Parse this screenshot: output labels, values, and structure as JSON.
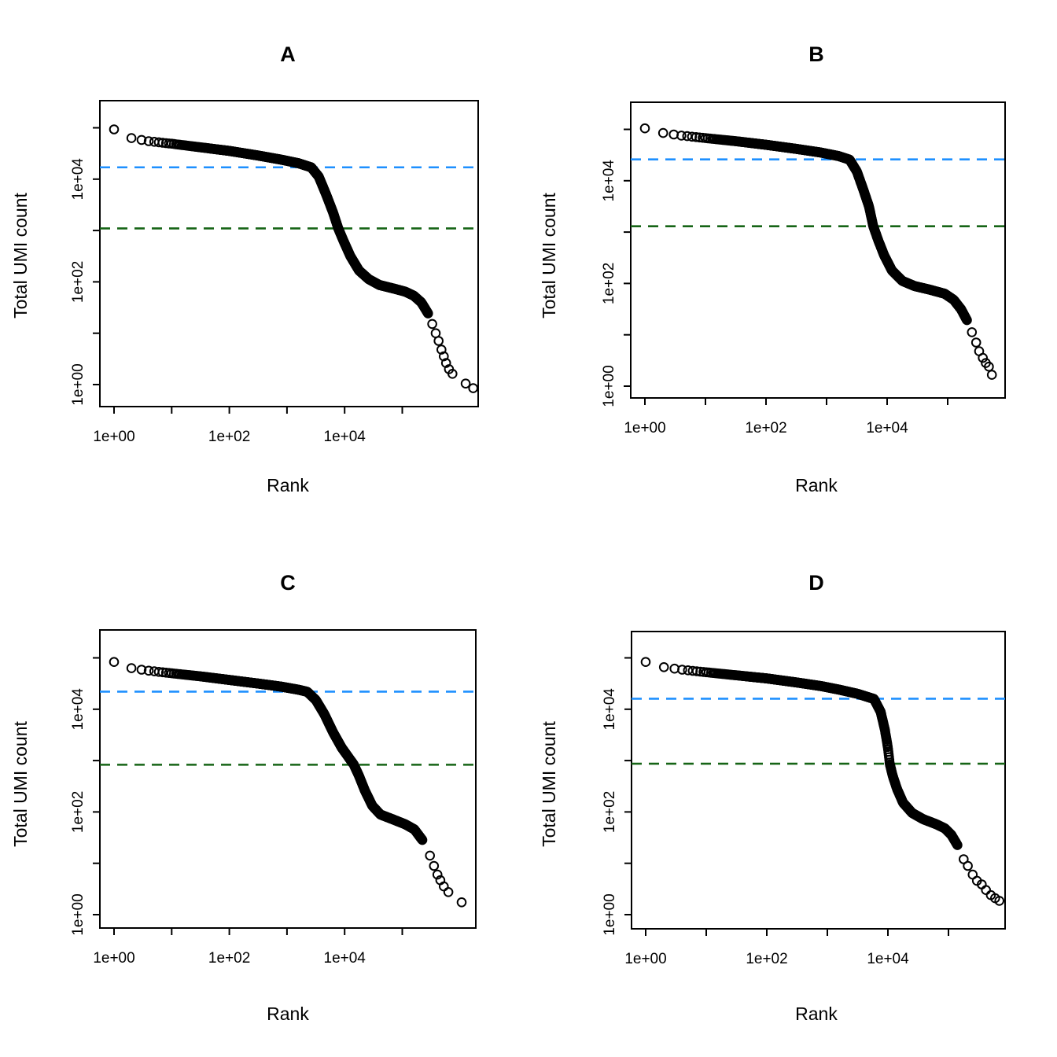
{
  "figure": {
    "background": "#ffffff",
    "description": "2x2 grid of barcode-rank (knee) scatter plots on log-log axes with knee and inflection threshold lines"
  },
  "colors": {
    "knee_line": "#1E90FF",
    "inflection_line": "#166416",
    "points": "#000000",
    "axis": "#000000",
    "text": "#000000"
  },
  "chart_data": [
    {
      "id": "A",
      "title": "A",
      "type": "scatter",
      "xlabel": "Rank",
      "ylabel": "Total UMI count",
      "x_scale": "log10",
      "y_scale": "log10",
      "grid": false,
      "legend": "none",
      "x_tick_labels": [
        {
          "decade": 0,
          "label": "1e+00"
        },
        {
          "decade": 2,
          "label": "1e+02"
        },
        {
          "decade": 4,
          "label": "1e+04"
        }
      ],
      "y_tick_labels": [
        {
          "decade": 0,
          "label": "1e+00"
        },
        {
          "decade": 2,
          "label": "1e+02"
        },
        {
          "decade": 4,
          "label": "1e+04"
        }
      ],
      "x_minor_tick_decades": [
        0,
        1,
        2,
        3,
        4,
        5
      ],
      "y_minor_tick_decades": [
        0,
        1,
        2,
        3,
        4,
        5
      ],
      "knee_count": 17000,
      "inflection_count": 1100,
      "rank1_count": 93000,
      "max_rank": 1700000,
      "curve_log10": [
        [
          0,
          4.97
        ],
        [
          0.3,
          4.8
        ],
        [
          0.6,
          4.74
        ],
        [
          1.0,
          4.69
        ],
        [
          1.5,
          4.62
        ],
        [
          2.0,
          4.55
        ],
        [
          2.5,
          4.46
        ],
        [
          2.9,
          4.38
        ],
        [
          3.2,
          4.31
        ],
        [
          3.42,
          4.23
        ],
        [
          3.55,
          4.05
        ],
        [
          3.68,
          3.7
        ],
        [
          3.8,
          3.35
        ],
        [
          3.89,
          3.04
        ],
        [
          3.98,
          2.8
        ],
        [
          4.1,
          2.5
        ],
        [
          4.25,
          2.22
        ],
        [
          4.42,
          2.05
        ],
        [
          4.6,
          1.94
        ],
        [
          4.85,
          1.87
        ],
        [
          5.05,
          1.81
        ],
        [
          5.2,
          1.73
        ],
        [
          5.33,
          1.6
        ],
        [
          5.45,
          1.38
        ]
      ],
      "tail_log10": [
        [
          5.52,
          1.18
        ],
        [
          5.58,
          1.0
        ],
        [
          5.63,
          0.85
        ],
        [
          5.68,
          0.68
        ],
        [
          5.72,
          0.55
        ],
        [
          5.76,
          0.42
        ],
        [
          5.81,
          0.3
        ],
        [
          5.87,
          0.21
        ],
        [
          6.1,
          0.02
        ],
        [
          6.23,
          -0.07
        ]
      ]
    },
    {
      "id": "B",
      "title": "B",
      "type": "scatter",
      "xlabel": "Rank",
      "ylabel": "Total UMI count",
      "x_scale": "log10",
      "y_scale": "log10",
      "grid": false,
      "legend": "none",
      "x_tick_labels": [
        {
          "decade": 0,
          "label": "1e+00"
        },
        {
          "decade": 2,
          "label": "1e+02"
        },
        {
          "decade": 4,
          "label": "1e+04"
        }
      ],
      "y_tick_labels": [
        {
          "decade": 0,
          "label": "1e+00"
        },
        {
          "decade": 2,
          "label": "1e+02"
        },
        {
          "decade": 4,
          "label": "1e+04"
        }
      ],
      "x_minor_tick_decades": [
        0,
        1,
        2,
        3,
        4,
        5
      ],
      "y_minor_tick_decades": [
        0,
        1,
        2,
        3,
        4,
        5
      ],
      "knee_count": 26000,
      "inflection_count": 1300,
      "rank1_count": 105000,
      "max_rank": 540000,
      "curve_log10": [
        [
          0,
          5.02
        ],
        [
          0.3,
          4.93
        ],
        [
          0.6,
          4.88
        ],
        [
          1.0,
          4.83
        ],
        [
          1.5,
          4.77
        ],
        [
          2.0,
          4.7
        ],
        [
          2.5,
          4.62
        ],
        [
          2.9,
          4.55
        ],
        [
          3.2,
          4.48
        ],
        [
          3.38,
          4.41
        ],
        [
          3.5,
          4.18
        ],
        [
          3.6,
          3.85
        ],
        [
          3.7,
          3.5
        ],
        [
          3.77,
          3.12
        ],
        [
          3.85,
          2.85
        ],
        [
          3.95,
          2.55
        ],
        [
          4.08,
          2.25
        ],
        [
          4.25,
          2.05
        ],
        [
          4.45,
          1.95
        ],
        [
          4.7,
          1.88
        ],
        [
          4.95,
          1.8
        ],
        [
          5.1,
          1.68
        ],
        [
          5.22,
          1.5
        ],
        [
          5.32,
          1.28
        ]
      ],
      "tail_log10": [
        [
          5.4,
          1.05
        ],
        [
          5.47,
          0.85
        ],
        [
          5.52,
          0.68
        ],
        [
          5.58,
          0.55
        ],
        [
          5.63,
          0.45
        ],
        [
          5.68,
          0.38
        ],
        [
          5.73,
          0.22
        ]
      ]
    },
    {
      "id": "C",
      "title": "C",
      "type": "scatter",
      "xlabel": "Rank",
      "ylabel": "Total UMI count",
      "x_scale": "log10",
      "y_scale": "log10",
      "grid": false,
      "legend": "none",
      "x_tick_labels": [
        {
          "decade": 0,
          "label": "1e+00"
        },
        {
          "decade": 2,
          "label": "1e+02"
        },
        {
          "decade": 4,
          "label": "1e+04"
        }
      ],
      "y_tick_labels": [
        {
          "decade": 0,
          "label": "1e+00"
        },
        {
          "decade": 2,
          "label": "1e+02"
        },
        {
          "decade": 4,
          "label": "1e+04"
        }
      ],
      "x_minor_tick_decades": [
        0,
        1,
        2,
        3,
        4,
        5
      ],
      "y_minor_tick_decades": [
        0,
        1,
        2,
        3,
        4,
        5
      ],
      "knee_count": 22000,
      "inflection_count": 830,
      "rank1_count": 83000,
      "max_rank": 1070000,
      "curve_log10": [
        [
          0,
          4.92
        ],
        [
          0.3,
          4.8
        ],
        [
          0.6,
          4.75
        ],
        [
          1.0,
          4.7
        ],
        [
          1.5,
          4.64
        ],
        [
          2.0,
          4.57
        ],
        [
          2.5,
          4.5
        ],
        [
          2.9,
          4.44
        ],
        [
          3.2,
          4.38
        ],
        [
          3.35,
          4.34
        ],
        [
          3.5,
          4.18
        ],
        [
          3.65,
          3.9
        ],
        [
          3.8,
          3.55
        ],
        [
          3.95,
          3.25
        ],
        [
          4.16,
          2.92
        ],
        [
          4.25,
          2.7
        ],
        [
          4.35,
          2.42
        ],
        [
          4.48,
          2.12
        ],
        [
          4.62,
          1.95
        ],
        [
          4.85,
          1.85
        ],
        [
          5.05,
          1.76
        ],
        [
          5.21,
          1.66
        ],
        [
          5.35,
          1.45
        ]
      ],
      "tail_log10": [
        [
          5.48,
          1.15
        ],
        [
          5.55,
          0.95
        ],
        [
          5.61,
          0.78
        ],
        [
          5.66,
          0.67
        ],
        [
          5.72,
          0.55
        ],
        [
          5.8,
          0.44
        ],
        [
          6.03,
          0.24
        ]
      ]
    },
    {
      "id": "D",
      "title": "D",
      "type": "scatter",
      "xlabel": "Rank",
      "ylabel": "Total UMI count",
      "x_scale": "log10",
      "y_scale": "log10",
      "grid": false,
      "legend": "none",
      "x_tick_labels": [
        {
          "decade": 0,
          "label": "1e+00"
        },
        {
          "decade": 2,
          "label": "1e+02"
        },
        {
          "decade": 4,
          "label": "1e+04"
        }
      ],
      "y_tick_labels": [
        {
          "decade": 0,
          "label": "1e+00"
        },
        {
          "decade": 2,
          "label": "1e+02"
        },
        {
          "decade": 4,
          "label": "1e+04"
        }
      ],
      "x_minor_tick_decades": [
        0,
        1,
        2,
        3,
        4,
        5
      ],
      "y_minor_tick_decades": [
        0,
        1,
        2,
        3,
        4,
        5
      ],
      "knee_count": 16000,
      "inflection_count": 870,
      "rank1_count": 83000,
      "max_rank": 690000,
      "curve_log10": [
        [
          0,
          4.92
        ],
        [
          0.3,
          4.82
        ],
        [
          0.6,
          4.77
        ],
        [
          1.0,
          4.72
        ],
        [
          1.5,
          4.66
        ],
        [
          2.0,
          4.6
        ],
        [
          2.5,
          4.52
        ],
        [
          2.9,
          4.45
        ],
        [
          3.2,
          4.38
        ],
        [
          3.5,
          4.3
        ],
        [
          3.77,
          4.2
        ],
        [
          3.88,
          3.95
        ],
        [
          3.95,
          3.6
        ],
        [
          4.0,
          3.25
        ],
        [
          4.03,
          2.94
        ],
        [
          4.08,
          2.7
        ],
        [
          4.15,
          2.45
        ],
        [
          4.25,
          2.18
        ],
        [
          4.4,
          1.98
        ],
        [
          4.58,
          1.86
        ],
        [
          4.8,
          1.76
        ],
        [
          4.94,
          1.68
        ],
        [
          5.05,
          1.55
        ],
        [
          5.15,
          1.35
        ]
      ],
      "tail_log10": [
        [
          5.25,
          1.08
        ],
        [
          5.32,
          0.95
        ],
        [
          5.4,
          0.78
        ],
        [
          5.47,
          0.66
        ],
        [
          5.55,
          0.59
        ],
        [
          5.62,
          0.48
        ],
        [
          5.7,
          0.38
        ],
        [
          5.77,
          0.32
        ],
        [
          5.84,
          0.27
        ]
      ]
    }
  ]
}
